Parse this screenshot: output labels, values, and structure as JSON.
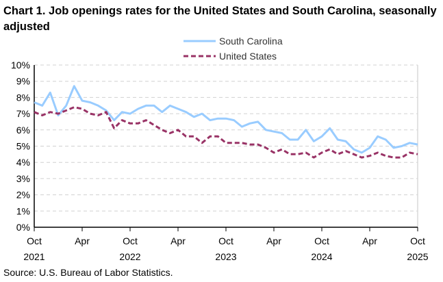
{
  "chart_data": {
    "type": "line",
    "title": "Chart 1. Job openings rates for the United States and South Carolina, seasonally adjusted",
    "source": "Source: U.S. Bureau of Labor Statistics.",
    "xlabel": "",
    "ylabel": "",
    "ylim": [
      0,
      10
    ],
    "y_ticks": [
      "0%",
      "1%",
      "2%",
      "3%",
      "4%",
      "5%",
      "6%",
      "7%",
      "8%",
      "9%",
      "10%"
    ],
    "x_ticks": [
      {
        "month": "Oct",
        "year": "2021",
        "index": 0
      },
      {
        "month": "Apr",
        "year": "",
        "index": 6
      },
      {
        "month": "Oct",
        "year": "2022",
        "index": 12
      },
      {
        "month": "Apr",
        "year": "",
        "index": 18
      },
      {
        "month": "Oct",
        "year": "2023",
        "index": 24
      },
      {
        "month": "Apr",
        "year": "",
        "index": 30
      },
      {
        "month": "Oct",
        "year": "2024",
        "index": 36
      },
      {
        "month": "Apr",
        "year": "",
        "index": 42
      },
      {
        "month": "Oct",
        "year": "2025",
        "index": 48
      }
    ],
    "x_range": [
      "Oct 2021",
      "Oct 2025"
    ],
    "grid": "horizontal dashed",
    "legend_position": "top",
    "series": [
      {
        "name": "South Carolina",
        "color": "#99ccff",
        "style": "solid",
        "values": [
          7.7,
          7.5,
          8.3,
          6.9,
          7.5,
          8.7,
          7.8,
          7.7,
          7.5,
          7.2,
          6.6,
          7.1,
          7.0,
          7.3,
          7.5,
          7.5,
          7.1,
          7.5,
          7.3,
          7.1,
          6.8,
          7.0,
          6.6,
          6.7,
          6.7,
          6.6,
          6.2,
          6.4,
          6.5,
          6.0,
          5.9,
          5.8,
          5.4,
          5.4,
          6.0,
          5.3,
          5.6,
          6.1,
          5.4,
          5.3,
          4.8,
          4.6,
          4.9,
          5.6,
          5.4,
          4.9,
          5.0,
          5.2,
          5.1
        ]
      },
      {
        "name": "United States",
        "color": "#993366",
        "style": "dashed",
        "values": [
          7.1,
          6.9,
          7.1,
          7.0,
          7.2,
          7.4,
          7.3,
          7.0,
          6.9,
          7.1,
          6.1,
          6.6,
          6.4,
          6.4,
          6.6,
          6.3,
          6.0,
          5.8,
          6.0,
          5.6,
          5.6,
          5.2,
          5.6,
          5.6,
          5.2,
          5.2,
          5.2,
          5.1,
          5.1,
          4.9,
          4.6,
          4.8,
          4.5,
          4.5,
          4.6,
          4.3,
          4.6,
          4.8,
          4.5,
          4.7,
          4.5,
          4.3,
          4.4,
          4.6,
          4.4,
          4.3,
          4.3,
          4.6,
          4.5
        ]
      }
    ]
  }
}
